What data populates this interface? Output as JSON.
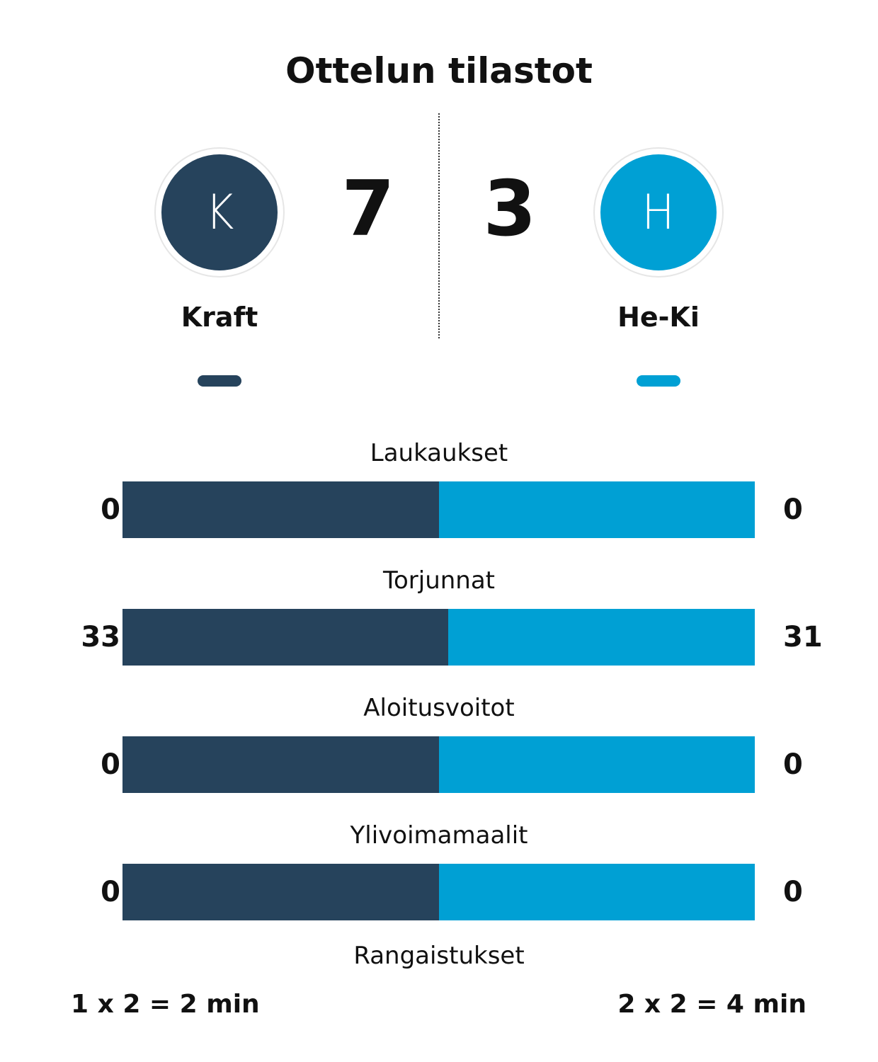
{
  "title": "Ottelun tilastot",
  "colors": {
    "home": "#26435c",
    "away": "#00a0d4"
  },
  "home": {
    "name": "Kraft",
    "initial": "K",
    "score": "7",
    "logo_icon": "team-logo-initial"
  },
  "away": {
    "name": "He-Ki",
    "initial": "H",
    "score": "3",
    "logo_icon": "team-logo-initial"
  },
  "stats": [
    {
      "label": "Laukaukset",
      "home": "0",
      "away": "0",
      "home_share": 0.5
    },
    {
      "label": "Torjunnat",
      "home": "33",
      "away": "31",
      "home_share": 0.515
    },
    {
      "label": "Aloitusvoitot",
      "home": "0",
      "away": "0",
      "home_share": 0.5
    },
    {
      "label": "Ylivoimamaalit",
      "home": "0",
      "away": "0",
      "home_share": 0.5
    }
  ],
  "penalties": {
    "label": "Rangaistukset",
    "home": "1 x 2 = 2 min",
    "away": "2 x 2 = 4 min"
  }
}
